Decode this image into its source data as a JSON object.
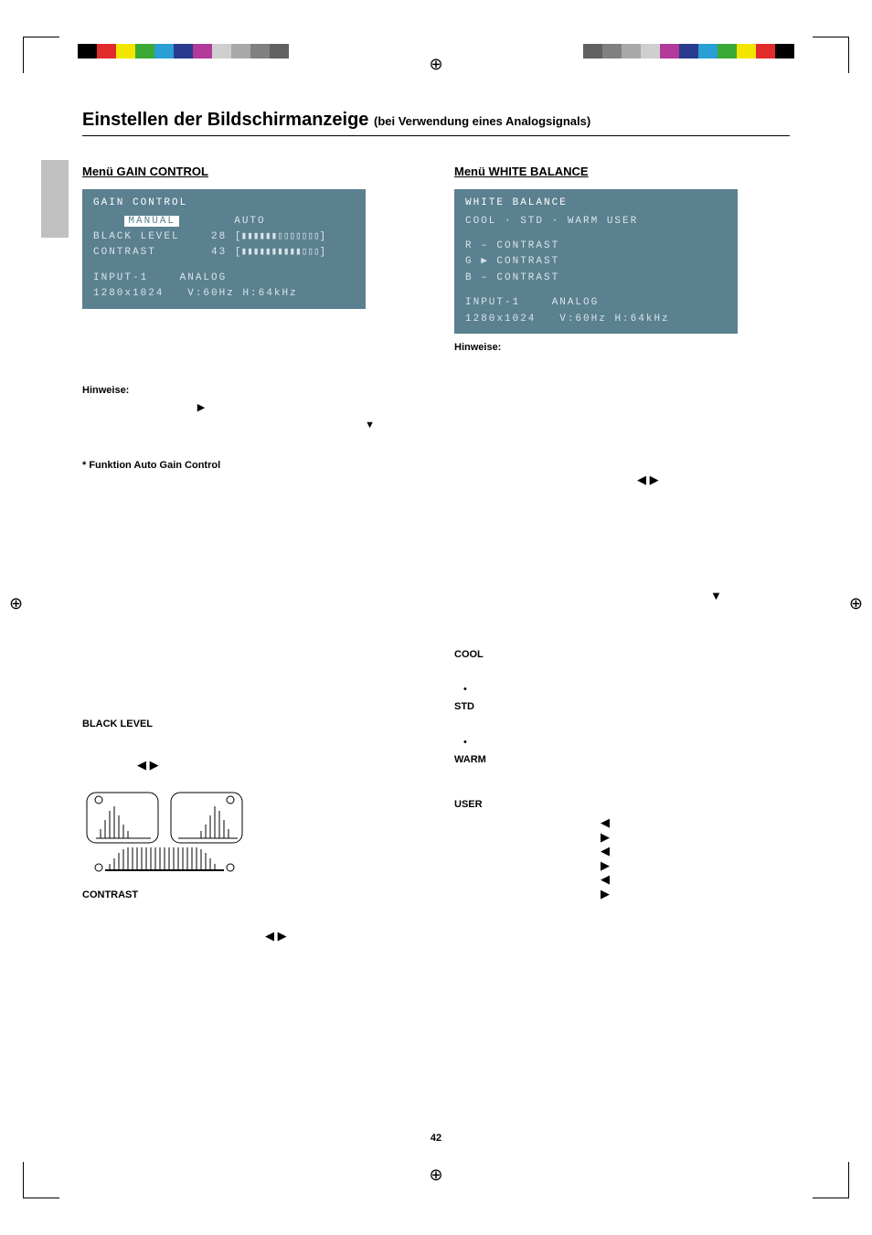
{
  "title_main": "Einstellen der Bildschirmanzeige",
  "title_sub": "(bei Verwendung eines Analogsignals)",
  "page_number": "42",
  "colorbar_left": [
    "#000000",
    "#e22b2b",
    "#f2e600",
    "#3aa935",
    "#2a9fd6",
    "#2a3b8f",
    "#b23a9b",
    "#cfcfcf",
    "#a8a8a8",
    "#808080",
    "#606060",
    "#ffffff"
  ],
  "colorbar_right": [
    "#ffffff",
    "#606060",
    "#808080",
    "#a8a8a8",
    "#cfcfcf",
    "#b23a9b",
    "#2a3b8f",
    "#2a9fd6",
    "#3aa935",
    "#f2e600",
    "#e22b2b",
    "#000000"
  ],
  "left": {
    "heading": "Menü GAIN CONTROL",
    "osd": {
      "title": "GAIN CONTROL",
      "manual": "MANUAL",
      "auto": "AUTO",
      "black_level_label": "BLACK LEVEL",
      "black_level_val": "28",
      "contrast_label": "CONTRAST",
      "contrast_val": "43",
      "input": "INPUT-1",
      "res": "1280x1024",
      "analog": "ANALOG",
      "freq": "V:60Hz  H:64kHz"
    },
    "hinweise": "Hinweise:",
    "func_title": "* Funktion Auto Gain Control",
    "black_level_h": "BLACK LEVEL",
    "contrast_h": "CONTRAST",
    "arrows_lr": "◀ ▶"
  },
  "right": {
    "heading": "Menü WHITE BALANCE",
    "osd": {
      "title": "WHITE BALANCE",
      "row1": "COOL · STD  · WARM  USER",
      "r": "R – CONTRAST",
      "g": "G ▶ CONTRAST",
      "b": "B – CONTRAST",
      "input": "INPUT-1",
      "res": "1280x1024",
      "analog": "ANALOG",
      "freq": "V:60Hz  H:64kHz"
    },
    "hinweise": "Hinweise:",
    "cool": "COOL",
    "std": "STD",
    "warm": "WARM",
    "user": "USER",
    "dot": "•",
    "arrows_lr": "◀ ▶",
    "arrow_r": "▶",
    "arrow_d": "▼",
    "arrow_l": "◀"
  }
}
